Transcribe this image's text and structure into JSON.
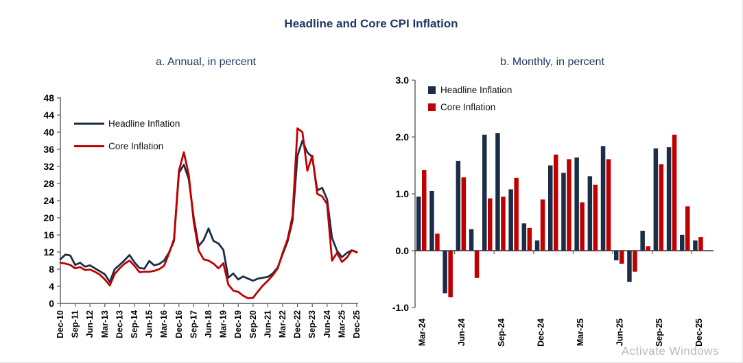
{
  "page": {
    "title": "Headline and Core CPI Inflation",
    "watermark": "Activate Windows"
  },
  "colors": {
    "headline": "#1c2e47",
    "core": "#c00000",
    "title_navy": "#1f3864",
    "axis": "#595959",
    "tick_text": "#000000"
  },
  "chart_data": [
    {
      "type": "line",
      "title": "a. Annual, in percent",
      "frequency": "quarterly",
      "x": [
        "Dec-10",
        "Mar-11",
        "Jun-11",
        "Sep-11",
        "Dec-11",
        "Mar-12",
        "Jun-12",
        "Sep-12",
        "Dec-12",
        "Mar-13",
        "Jun-13",
        "Sep-13",
        "Dec-13",
        "Mar-14",
        "Jun-14",
        "Sep-14",
        "Dec-14",
        "Mar-15",
        "Jun-15",
        "Sep-15",
        "Dec-15",
        "Mar-16",
        "Jun-16",
        "Sep-16",
        "Dec-16",
        "Mar-17",
        "Jun-17",
        "Sep-17",
        "Dec-17",
        "Mar-18",
        "Jun-18",
        "Sep-18",
        "Dec-18",
        "Mar-19",
        "Jun-19",
        "Sep-19",
        "Dec-19",
        "Mar-20",
        "Jun-20",
        "Sep-20",
        "Dec-20",
        "Mar-21",
        "Jun-21",
        "Sep-21",
        "Dec-21",
        "Mar-22",
        "Jun-22",
        "Sep-22",
        "Dec-22",
        "Mar-23",
        "Jun-23",
        "Sep-23",
        "Dec-23",
        "Mar-24",
        "Jun-24",
        "Sep-24",
        "Dec-24",
        "Mar-25",
        "Jun-25",
        "Sep-25",
        "Dec-25"
      ],
      "series": [
        {
          "name": "Headline Inflation",
          "color": "#1c2e47",
          "values": [
            10.3,
            11.4,
            11.2,
            9.0,
            9.5,
            8.6,
            8.9,
            8.2,
            7.5,
            6.8,
            5.0,
            8.0,
            9.0,
            10.1,
            11.3,
            9.6,
            8.3,
            8.1,
            9.9,
            8.9,
            9.2,
            10.0,
            11.9,
            14.6,
            30.5,
            32.4,
            29.0,
            20.0,
            13.4,
            14.8,
            17.5,
            14.6,
            14.0,
            12.5,
            6.0,
            7.0,
            5.6,
            6.3,
            5.8,
            5.3,
            5.8,
            6.0,
            6.2,
            7.0,
            8.4,
            11.5,
            14.5,
            19.3,
            34.5,
            38.0,
            35.3,
            34.2,
            26.4,
            27.0,
            24.3,
            15.3,
            12.3,
            10.8,
            11.8,
            12.4,
            12.0
          ]
        },
        {
          "name": "Core Inflation",
          "color": "#c00000",
          "values": [
            9.5,
            9.3,
            9.0,
            8.2,
            8.5,
            7.8,
            7.9,
            7.4,
            6.7,
            5.6,
            4.2,
            6.9,
            8.2,
            9.3,
            10.0,
            8.8,
            7.3,
            7.4,
            7.4,
            7.6,
            8.0,
            8.8,
            11.7,
            15.0,
            31.0,
            35.3,
            30.0,
            19.0,
            12.3,
            10.3,
            10.0,
            9.3,
            8.2,
            9.4,
            4.4,
            3.0,
            2.7,
            1.8,
            1.2,
            1.3,
            2.8,
            4.2,
            5.3,
            6.6,
            8.2,
            11.8,
            15.0,
            20.4,
            40.9,
            40.0,
            31.0,
            34.5,
            25.6,
            25.0,
            23.2,
            10.0,
            11.8,
            9.7,
            10.7,
            12.4,
            11.9
          ]
        }
      ],
      "ylim": [
        0,
        48
      ],
      "ytick_step": 4,
      "x_tick_labels": [
        "Dec-10",
        "Sep-11",
        "Jun-12",
        "Mar-13",
        "Dec-13",
        "Sep-14",
        "Jun-15",
        "Mar-16",
        "Dec-16",
        "Sep-17",
        "Jun-18",
        "Mar-19",
        "Dec-19",
        "Sep-20",
        "Jun-21",
        "Mar-22",
        "Dec-22",
        "Sep-23",
        "Jun-24",
        "Mar-25",
        "Dec-25"
      ],
      "x_tick_step_months": 9,
      "legend_position": "top-left-inside",
      "grid": false
    },
    {
      "type": "bar",
      "title": "b. Monthly, in percent",
      "categories": [
        "Mar-24",
        "Apr-24",
        "May-24",
        "Jun-24",
        "Jul-24",
        "Aug-24",
        "Sep-24",
        "Oct-24",
        "Nov-24",
        "Dec-24",
        "Jan-25",
        "Feb-25",
        "Mar-25",
        "Apr-25",
        "May-25",
        "Jun-25",
        "Jul-25",
        "Aug-25",
        "Sep-25",
        "Oct-25",
        "Nov-25",
        "Dec-25"
      ],
      "series": [
        {
          "name": "Headline Inflation",
          "color": "#1c2e47",
          "values": [
            0.95,
            1.05,
            -0.75,
            1.58,
            0.38,
            2.04,
            2.07,
            1.08,
            0.48,
            0.18,
            1.5,
            1.37,
            1.64,
            1.31,
            1.84,
            -0.17,
            -0.55,
            0.35,
            1.8,
            1.82,
            0.28,
            0.18
          ]
        },
        {
          "name": "Core Inflation",
          "color": "#c00000",
          "values": [
            1.42,
            0.3,
            -0.82,
            1.29,
            -0.48,
            0.92,
            0.95,
            1.28,
            0.4,
            0.9,
            1.69,
            1.61,
            0.85,
            1.16,
            1.61,
            -0.23,
            -0.37,
            0.08,
            1.52,
            2.04,
            0.78,
            0.24
          ]
        }
      ],
      "ylim": [
        -1.0,
        3.0
      ],
      "ytick_step": 1.0,
      "y_tick_labels": [
        "3.0",
        "2.0",
        "1.0",
        "0.0",
        "-1.0"
      ],
      "x_tick_labels": [
        "Mar-24",
        "Jun-24",
        "Sep-24",
        "Dec-24",
        "Mar-25",
        "Jun-25",
        "Sep-25",
        "Dec-25"
      ],
      "x_tick_step_months": 3,
      "legend_position": "top-left-inside",
      "grid": false
    }
  ]
}
